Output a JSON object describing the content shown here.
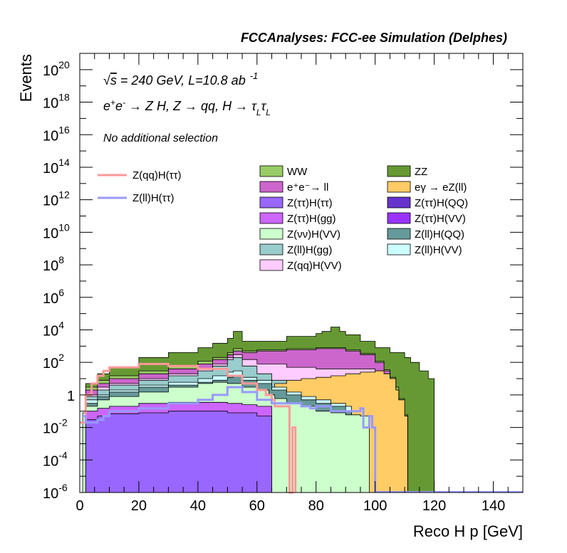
{
  "chart_data": {
    "type": "stacked-histogram",
    "title": "FCCAnalyses: FCC-ee Simulation (Delphes)",
    "annotations": [
      "√s = 240 GeV, L=10.8 ab⁻¹",
      "e⁺e⁻ → Z H, Z → qq, H → τ_L τ_L",
      "No additional selection"
    ],
    "xlabel": "Reco H p [GeV]",
    "ylabel": "Events",
    "xlim": [
      0,
      150
    ],
    "ylim": [
      1e-06,
      1e+21
    ],
    "yscale": "log",
    "x_ticks": [
      0,
      20,
      40,
      60,
      80,
      100,
      120,
      140
    ],
    "y_ticks": [
      {
        "mant": "10",
        "exp": "-6",
        "value": 1e-06
      },
      {
        "mant": "10",
        "exp": "-4",
        "value": 0.0001
      },
      {
        "mant": "10",
        "exp": "-2",
        "value": 0.01
      },
      {
        "mant": "1",
        "exp": "",
        "value": 1
      },
      {
        "mant": "10",
        "exp": "2",
        "value": 100.0
      },
      {
        "mant": "10",
        "exp": "4",
        "value": 10000.0
      },
      {
        "mant": "10",
        "exp": "6",
        "value": 1000000.0
      },
      {
        "mant": "10",
        "exp": "8",
        "value": 100000000.0
      },
      {
        "mant": "10",
        "exp": "10",
        "value": 10000000000.0
      },
      {
        "mant": "10",
        "exp": "12",
        "value": 1000000000000.0
      },
      {
        "mant": "10",
        "exp": "14",
        "value": 100000000000000.0
      },
      {
        "mant": "10",
        "exp": "16",
        "value": 1e+16
      },
      {
        "mant": "10",
        "exp": "18",
        "value": 1e+18
      },
      {
        "mant": "10",
        "exp": "20",
        "value": 1e+20
      }
    ],
    "stack_layers": [
      {
        "name": "Z(ττ)H(VV)",
        "color": "#9966ff",
        "points": [
          [
            1,
            1e-06
          ],
          [
            2,
            0.03
          ],
          [
            6,
            0.05
          ],
          [
            10,
            0.07
          ],
          [
            20,
            0.08
          ],
          [
            30,
            0.1
          ],
          [
            40,
            0.1
          ],
          [
            50,
            0.08
          ],
          [
            55,
            0.08
          ],
          [
            60,
            0.05
          ],
          [
            64,
            0.05
          ],
          [
            65,
            0.05
          ],
          [
            65,
            1e-06
          ]
        ]
      },
      {
        "name": "Z(ττ)H(QQ)",
        "color": "#cc66ff",
        "points": [
          [
            2,
            0.1
          ],
          [
            6,
            0.15
          ],
          [
            10,
            0.2
          ],
          [
            20,
            0.3
          ],
          [
            30,
            0.35
          ],
          [
            40,
            0.35
          ],
          [
            50,
            0.3
          ],
          [
            55,
            0.25
          ],
          [
            60,
            0.2
          ],
          [
            65,
            0.15
          ],
          [
            65,
            1e-06
          ]
        ]
      },
      {
        "name": "Z(νν)H(VV)",
        "color": "#ccffcc",
        "points": [
          [
            1,
            0.08
          ],
          [
            2,
            0.2
          ],
          [
            6,
            0.5
          ],
          [
            10,
            0.8
          ],
          [
            20,
            1.5
          ],
          [
            30,
            3
          ],
          [
            40,
            5
          ],
          [
            45,
            6
          ],
          [
            50,
            5
          ],
          [
            55,
            3
          ],
          [
            60,
            2
          ],
          [
            64,
            1
          ],
          [
            66,
            0.6
          ],
          [
            70,
            0.3
          ],
          [
            75,
            0.2
          ],
          [
            80,
            0.1
          ],
          [
            85,
            0.08
          ],
          [
            90,
            0.06
          ],
          [
            95,
            0.05
          ],
          [
            98,
            0.05
          ],
          [
            98,
            1e-06
          ]
        ]
      },
      {
        "name": "Z(ll)H(QQ)",
        "color": "#669999",
        "points": [
          [
            2,
            0.3
          ],
          [
            6,
            0.8
          ],
          [
            10,
            1.5
          ],
          [
            20,
            3
          ],
          [
            30,
            4
          ],
          [
            40,
            6
          ],
          [
            45,
            8
          ],
          [
            50,
            12
          ],
          [
            52,
            15
          ],
          [
            55,
            8
          ],
          [
            60,
            5
          ],
          [
            65,
            2
          ],
          [
            70,
            1
          ],
          [
            75,
            0.5
          ],
          [
            80,
            0.3
          ],
          [
            85,
            0.2
          ],
          [
            90,
            0.1
          ],
          [
            92,
            0.05
          ],
          [
            92,
            1e-06
          ]
        ]
      },
      {
        "name": "Z(ll)H(VV)",
        "color": "#ccffff",
        "points": [
          [
            2,
            0.5
          ],
          [
            6,
            1
          ],
          [
            10,
            2
          ],
          [
            20,
            4
          ],
          [
            30,
            6
          ],
          [
            40,
            10
          ],
          [
            45,
            15
          ],
          [
            50,
            25
          ],
          [
            52,
            30
          ],
          [
            55,
            12
          ],
          [
            60,
            8
          ],
          [
            65,
            3
          ],
          [
            70,
            1.5
          ],
          [
            75,
            0.8
          ],
          [
            80,
            0.5
          ],
          [
            85,
            0.3
          ],
          [
            90,
            0.2
          ],
          [
            92,
            0.1
          ],
          [
            92,
            1e-06
          ]
        ]
      },
      {
        "name": "eγ → eZ(ll)",
        "color": "#ffcc66",
        "points": [
          [
            58,
            1
          ],
          [
            62,
            3
          ],
          [
            66,
            5
          ],
          [
            70,
            8
          ],
          [
            75,
            10
          ],
          [
            80,
            12
          ],
          [
            85,
            15
          ],
          [
            90,
            20
          ],
          [
            95,
            25
          ],
          [
            100,
            30
          ],
          [
            103,
            20
          ],
          [
            105,
            10
          ],
          [
            107,
            2
          ],
          [
            108,
            0.5
          ],
          [
            110,
            0.05
          ],
          [
            111,
            1e-06
          ]
        ]
      },
      {
        "name": "Z(ll)H(gg)",
        "color": "#99cccc",
        "points": [
          [
            2,
            0.8
          ],
          [
            6,
            2
          ],
          [
            10,
            4
          ],
          [
            20,
            8
          ],
          [
            30,
            15
          ],
          [
            40,
            30
          ],
          [
            45,
            60
          ],
          [
            50,
            150
          ],
          [
            52,
            200
          ],
          [
            55,
            60
          ],
          [
            60,
            20
          ],
          [
            65,
            8
          ],
          [
            70,
            4
          ],
          [
            75,
            2
          ],
          [
            80,
            1
          ],
          [
            85,
            0.5
          ],
          [
            90,
            0.3
          ],
          [
            92,
            0.1
          ],
          [
            92,
            1e-06
          ]
        ]
      },
      {
        "name": "Z(qq)H(VV)",
        "color": "#ffccff",
        "points": [
          [
            2,
            1
          ],
          [
            6,
            3
          ],
          [
            10,
            5
          ],
          [
            20,
            10
          ],
          [
            30,
            20
          ],
          [
            40,
            40
          ],
          [
            45,
            80
          ],
          [
            50,
            200
          ],
          [
            52,
            300
          ],
          [
            55,
            150
          ],
          [
            60,
            80
          ],
          [
            70,
            50
          ],
          [
            80,
            40
          ],
          [
            90,
            40
          ],
          [
            95,
            40
          ],
          [
            100,
            30
          ],
          [
            103,
            20
          ],
          [
            105,
            10
          ],
          [
            107,
            2
          ],
          [
            108,
            0.5
          ],
          [
            110,
            0.05
          ],
          [
            111,
            1e-06
          ]
        ]
      },
      {
        "name": "e⁺e⁻→ ll",
        "color": "#cc66cc",
        "points": [
          [
            2,
            2
          ],
          [
            6,
            5
          ],
          [
            10,
            10
          ],
          [
            20,
            20
          ],
          [
            30,
            40
          ],
          [
            40,
            80
          ],
          [
            45,
            150
          ],
          [
            50,
            300
          ],
          [
            52,
            500
          ],
          [
            55,
            400
          ],
          [
            60,
            500
          ],
          [
            70,
            600
          ],
          [
            80,
            700
          ],
          [
            90,
            500
          ],
          [
            95,
            300
          ],
          [
            100,
            100
          ],
          [
            103,
            30
          ],
          [
            105,
            10
          ],
          [
            107,
            2
          ],
          [
            108,
            0.5
          ],
          [
            110,
            0.05
          ],
          [
            111,
            1e-06
          ]
        ]
      },
      {
        "name": "WW",
        "color": "#99cc66",
        "points": [
          [
            2,
            3
          ],
          [
            6,
            8
          ],
          [
            10,
            15
          ],
          [
            20,
            30
          ],
          [
            30,
            60
          ],
          [
            40,
            120
          ],
          [
            45,
            200
          ],
          [
            50,
            400
          ],
          [
            52,
            700
          ],
          [
            55,
            500
          ],
          [
            60,
            600
          ],
          [
            70,
            700
          ],
          [
            80,
            800
          ],
          [
            90,
            600
          ],
          [
            95,
            350
          ],
          [
            100,
            120
          ],
          [
            103,
            35
          ],
          [
            105,
            12
          ],
          [
            107,
            3
          ],
          [
            108,
            0.6
          ],
          [
            110,
            0.06
          ],
          [
            111,
            1e-06
          ]
        ]
      },
      {
        "name": "ZZ",
        "color": "#669933",
        "points": [
          [
            2,
            5
          ],
          [
            6,
            20
          ],
          [
            10,
            50
          ],
          [
            20,
            200
          ],
          [
            30,
            400
          ],
          [
            40,
            800
          ],
          [
            45,
            1500
          ],
          [
            50,
            3000
          ],
          [
            52,
            8000
          ],
          [
            55,
            2000
          ],
          [
            60,
            2000
          ],
          [
            70,
            4000
          ],
          [
            80,
            6000
          ],
          [
            82,
            8000
          ],
          [
            85,
            15000
          ],
          [
            88,
            8000
          ],
          [
            90,
            5000
          ],
          [
            95,
            2000
          ],
          [
            100,
            800
          ],
          [
            105,
            400
          ],
          [
            110,
            200
          ],
          [
            112,
            100
          ],
          [
            115,
            30
          ],
          [
            118,
            10
          ],
          [
            120,
            5
          ],
          [
            120,
            1e-06
          ]
        ]
      }
    ],
    "line_series": [
      {
        "name": "Z(qq)H(ττ)",
        "color": "#ff9999",
        "points": [
          [
            0,
            0.02
          ],
          [
            2,
            1
          ],
          [
            4,
            5
          ],
          [
            6,
            15
          ],
          [
            8,
            30
          ],
          [
            10,
            50
          ],
          [
            20,
            80
          ],
          [
            30,
            60
          ],
          [
            40,
            40
          ],
          [
            50,
            15
          ],
          [
            55,
            5
          ],
          [
            60,
            2
          ],
          [
            63,
            1
          ],
          [
            65,
            0.5
          ],
          [
            66,
            0.2
          ],
          [
            68,
            0.2
          ],
          [
            70,
            0.2
          ],
          [
            71,
            1e-06
          ],
          [
            72,
            1e-06
          ],
          [
            72,
            0.01
          ],
          [
            73,
            0.01
          ],
          [
            73,
            1e-06
          ]
        ]
      },
      {
        "name": "Z(ll)H(ττ)",
        "color": "#9999ff",
        "points": [
          [
            1,
            0.05
          ],
          [
            2,
            0.02
          ],
          [
            4,
            0.02
          ],
          [
            6,
            0.03
          ],
          [
            8,
            0.05
          ],
          [
            10,
            0.1
          ],
          [
            20,
            0.15
          ],
          [
            30,
            0.3
          ],
          [
            40,
            0.5
          ],
          [
            45,
            1
          ],
          [
            50,
            3
          ],
          [
            55,
            1.5
          ],
          [
            60,
            0.5
          ],
          [
            65,
            0.3
          ],
          [
            70,
            0.3
          ],
          [
            75,
            0.2
          ],
          [
            78,
            0.15
          ],
          [
            80,
            0.2
          ],
          [
            85,
            0.1
          ],
          [
            90,
            0.1
          ],
          [
            95,
            0.15
          ],
          [
            96,
            0.01
          ],
          [
            98,
            0.05
          ],
          [
            99,
            0.01
          ],
          [
            100,
            0.01
          ],
          [
            100,
            1e-06
          ]
        ]
      }
    ],
    "legend_left": [
      "Z(qq)H(ττ)",
      "Z(ll)H(ττ)"
    ],
    "legend_grid": [
      {
        "label": "WW",
        "color": "#99cc66"
      },
      {
        "label": "ZZ",
        "color": "#669933"
      },
      {
        "label": "e⁺e⁻→ ll",
        "color": "#cc66cc"
      },
      {
        "label": "eγ → eZ(ll)",
        "color": "#ffcc66"
      },
      {
        "label": "Z(ττ)H(ττ)",
        "color": "#9966ff"
      },
      {
        "label": "Z(ττ)H(QQ)",
        "color": "#6633cc"
      },
      {
        "label": "Z(ττ)H(gg)",
        "color": "#cc66ff"
      },
      {
        "label": "Z(ττ)H(VV)",
        "color": "#9933ff"
      },
      {
        "label": "Z(νν)H(VV)",
        "color": "#ccffcc"
      },
      {
        "label": "Z(ll)H(QQ)",
        "color": "#669999"
      },
      {
        "label": "Z(ll)H(gg)",
        "color": "#99cccc"
      },
      {
        "label": "Z(ll)H(VV)",
        "color": "#ccffff"
      },
      {
        "label": "Z(qq)H(VV)",
        "color": "#ffccff"
      }
    ]
  }
}
